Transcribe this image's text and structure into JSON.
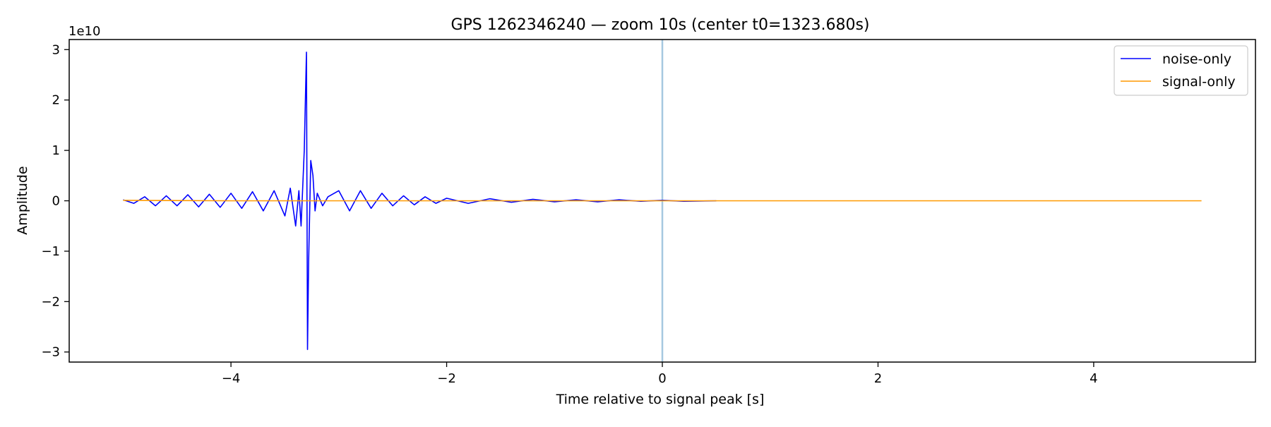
{
  "chart_data": {
    "type": "line",
    "title": "GPS 1262346240 — zoom 10s (center t0=1323.680s)",
    "xlabel": "Time relative to signal peak [s]",
    "ylabel": "Amplitude",
    "y_offset_label": "1e10",
    "xlim": [
      -5.5,
      5.5
    ],
    "ylim": [
      -3.2,
      3.2
    ],
    "y_scale_factor": 10000000000,
    "xticks": [
      -4,
      -2,
      0,
      2,
      4
    ],
    "xtick_labels": [
      "−4",
      "−2",
      "0",
      "2",
      "4"
    ],
    "yticks": [
      -3,
      -2,
      -1,
      0,
      1,
      2,
      3
    ],
    "ytick_labels": [
      "−3",
      "−2",
      "−1",
      "0",
      "1",
      "2",
      "3"
    ],
    "grid": false,
    "legend_position": "top-right",
    "vline": {
      "x": 0,
      "color": "#a6c8e0"
    },
    "series": [
      {
        "name": "noise-only",
        "color": "#0000ff",
        "x": [
          -5.0,
          -4.9,
          -4.8,
          -4.7,
          -4.6,
          -4.5,
          -4.4,
          -4.3,
          -4.2,
          -4.1,
          -4.0,
          -3.9,
          -3.8,
          -3.7,
          -3.6,
          -3.5,
          -3.45,
          -3.4,
          -3.37,
          -3.35,
          -3.32,
          -3.3,
          -3.29,
          -3.28,
          -3.26,
          -3.24,
          -3.22,
          -3.2,
          -3.15,
          -3.1,
          -3.0,
          -2.9,
          -2.8,
          -2.7,
          -2.6,
          -2.5,
          -2.4,
          -2.3,
          -2.2,
          -2.1,
          -2.0,
          -1.8,
          -1.6,
          -1.4,
          -1.2,
          -1.0,
          -0.8,
          -0.6,
          -0.4,
          -0.2,
          0.0,
          0.2,
          0.5
        ],
        "values": [
          0.02,
          -0.05,
          0.08,
          -0.1,
          0.1,
          -0.1,
          0.12,
          -0.12,
          0.13,
          -0.13,
          0.15,
          -0.15,
          0.18,
          -0.2,
          0.2,
          -0.3,
          0.25,
          -0.5,
          0.2,
          -0.5,
          1.0,
          2.95,
          -2.95,
          -1.2,
          0.8,
          0.5,
          -0.2,
          0.15,
          -0.1,
          0.08,
          0.2,
          -0.2,
          0.2,
          -0.15,
          0.15,
          -0.1,
          0.1,
          -0.08,
          0.08,
          -0.05,
          0.05,
          -0.05,
          0.04,
          -0.03,
          0.03,
          -0.02,
          0.02,
          -0.02,
          0.02,
          -0.01,
          0.01,
          -0.01,
          0.0
        ]
      },
      {
        "name": "signal-only",
        "color": "#ff9900",
        "x": [
          -5.0,
          -4.0,
          -3.0,
          -2.0,
          -1.0,
          0.0,
          1.0,
          2.0,
          3.0,
          4.0,
          5.0
        ],
        "values": [
          0.01,
          0.0,
          0.0,
          0.0,
          0.0,
          0.0,
          0.0,
          0.0,
          0.0,
          0.0,
          0.0
        ]
      }
    ]
  }
}
